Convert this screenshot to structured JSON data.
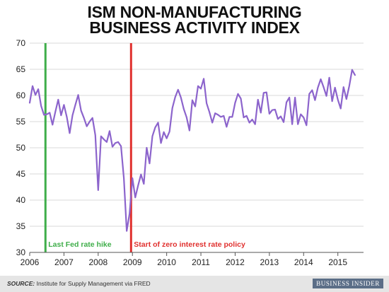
{
  "title_lines": [
    "ISM NON-MANUFACTURING",
    "BUSINESS ACTIVITY INDEX"
  ],
  "source_label": "SOURCE:",
  "source_text": "Institute for Supply Management via FRED",
  "logo_text": "BUSINESS INSIDER",
  "colors": {
    "line": "#8c64cc",
    "green_marker": "#3fae4a",
    "red_marker": "#e0302e",
    "grid": "#d9d9d9",
    "axis": "#555555",
    "footer_bg": "#e5e5e5"
  },
  "chart_data": {
    "type": "line",
    "title": "ISM NON-MANUFACTURING BUSINESS ACTIVITY INDEX",
    "xlabel": "",
    "ylabel": "",
    "ylim": [
      30,
      70
    ],
    "y_ticks": [
      30,
      35,
      40,
      45,
      50,
      55,
      60,
      65,
      70
    ],
    "xlim": [
      2006.0,
      2015.75
    ],
    "x_ticks": [
      2006,
      2007,
      2008,
      2009,
      2010,
      2011,
      2012,
      2013,
      2014,
      2015
    ],
    "grid": true,
    "x_start": 2006.0,
    "x_step": 0.08333,
    "series": [
      {
        "values": [
          58.6,
          61.8,
          60.1,
          61.2,
          58.0,
          56.3,
          56.4,
          56.7,
          54.4,
          56.9,
          59.2,
          56.2,
          58.2,
          55.9,
          52.8,
          56.2,
          58.2,
          60.1,
          57.1,
          55.7,
          54.1,
          55.0,
          55.7,
          52.4,
          41.9,
          52.2,
          51.6,
          51.1,
          53.2,
          50.2,
          50.9,
          51.1,
          50.3,
          44.2,
          34.1,
          37.4,
          44.2,
          40.5,
          42.8,
          44.9,
          43.1,
          50.0,
          47.0,
          52.2,
          53.9,
          54.8,
          50.9,
          53.0,
          51.8,
          53.1,
          57.6,
          59.7,
          61.1,
          59.6,
          57.4,
          55.8,
          53.3,
          59.1,
          57.9,
          61.8,
          61.3,
          63.2,
          58.5,
          56.8,
          54.8,
          56.6,
          56.3,
          55.9,
          56.1,
          54.0,
          55.9,
          55.9,
          58.6,
          60.3,
          59.4,
          55.8,
          56.1,
          54.8,
          55.4,
          54.5,
          59.2,
          56.7,
          60.5,
          60.6,
          56.5,
          57.2,
          57.3,
          55.5,
          56.0,
          54.9,
          58.7,
          59.6,
          54.5,
          59.6,
          54.5,
          56.4,
          55.8,
          54.3,
          60.3,
          61.0,
          59.1,
          61.5,
          63.1,
          61.6,
          59.9,
          63.4,
          58.9,
          61.5,
          59.2,
          57.5,
          61.6,
          59.3,
          61.8,
          64.9,
          63.9
        ]
      }
    ],
    "annotations": [
      {
        "label": "Last Fed rate hike",
        "x": 2006.46,
        "color": "#3fae4a"
      },
      {
        "label": "Start of zero interest rate policy",
        "x": 2008.96,
        "color": "#e0302e"
      }
    ]
  }
}
